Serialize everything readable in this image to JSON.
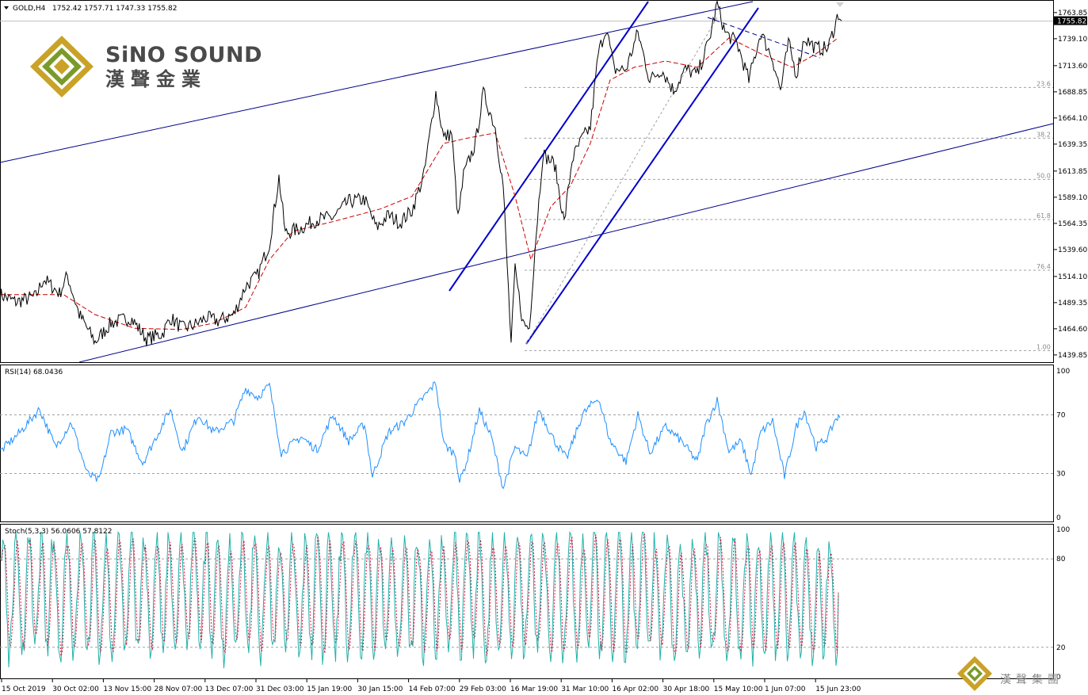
{
  "header": {
    "symbol_label": "GOLD,H4",
    "ohlc": "1752.42 1757.71 1747.33 1755.82"
  },
  "logo": {
    "name_en": "SiNO SOUND",
    "name_cn": "漢聲金業",
    "watermark_cn": "漢聲集團",
    "gold": "#c9a227",
    "green": "#7a9a2a"
  },
  "colors": {
    "candle": "#000000",
    "ma": "#cc0000",
    "channel": "#00008b",
    "rsi": "#1e90ff",
    "stoch_main": "#20b2aa",
    "stoch_signal": "#dc143c",
    "fib": "#a0a0a0"
  },
  "chart_data": [
    {
      "type": "line",
      "id": "price",
      "title": "GOLD,H4",
      "ohlc_last": {
        "open": 1752.42,
        "high": 1757.71,
        "low": 1747.33,
        "close": 1755.82
      },
      "current_price_label": "1755.82",
      "ylim": [
        1433,
        1775
      ],
      "yticks": [
        "1763.85",
        "1739.10",
        "1713.60",
        "1688.85",
        "1664.10",
        "1639.35",
        "1613.85",
        "1589.10",
        "1564.35",
        "1539.60",
        "1514.10",
        "1489.35",
        "1464.60",
        "1439.85"
      ],
      "x_labels": [
        "15 Oct 2019",
        "30 Oct 02:00",
        "13 Nov 15:00",
        "28 Nov 07:00",
        "13 Dec 07:00",
        "31 Dec 03:00",
        "15 Jan 19:00",
        "30 Jan 15:00",
        "14 Feb 07:00",
        "29 Feb 03:00",
        "16 Mar 19:00",
        "31 Mar 10:00",
        "16 Apr 02:00",
        "30 Apr 18:00",
        "15 May 10:00",
        "1 Jun 07:00",
        "15 Jun 23:00"
      ],
      "price_path": [
        [
          0,
          1497
        ],
        [
          20,
          1490
        ],
        [
          45,
          1495
        ],
        [
          55,
          1512
        ],
        [
          75,
          1498
        ],
        [
          85,
          1515
        ],
        [
          100,
          1478
        ],
        [
          120,
          1452
        ],
        [
          140,
          1470
        ],
        [
          165,
          1475
        ],
        [
          185,
          1455
        ],
        [
          205,
          1460
        ],
        [
          215,
          1475
        ],
        [
          230,
          1465
        ],
        [
          245,
          1468
        ],
        [
          260,
          1475
        ],
        [
          275,
          1472
        ],
        [
          295,
          1478
        ],
        [
          310,
          1505
        ],
        [
          325,
          1515
        ],
        [
          340,
          1545
        ],
        [
          352,
          1608
        ],
        [
          360,
          1555
        ],
        [
          380,
          1560
        ],
        [
          400,
          1568
        ],
        [
          420,
          1570
        ],
        [
          440,
          1585
        ],
        [
          460,
          1587
        ],
        [
          475,
          1560
        ],
        [
          490,
          1572
        ],
        [
          505,
          1565
        ],
        [
          520,
          1577
        ],
        [
          535,
          1610
        ],
        [
          550,
          1688
        ],
        [
          560,
          1645
        ],
        [
          570,
          1650
        ],
        [
          578,
          1568
        ],
        [
          585,
          1610
        ],
        [
          600,
          1640
        ],
        [
          610,
          1688
        ],
        [
          625,
          1655
        ],
        [
          635,
          1600
        ],
        [
          645,
          1450
        ],
        [
          650,
          1520
        ],
        [
          660,
          1470
        ],
        [
          668,
          1465
        ],
        [
          675,
          1540
        ],
        [
          685,
          1630
        ],
        [
          700,
          1620
        ],
        [
          712,
          1565
        ],
        [
          722,
          1625
        ],
        [
          735,
          1645
        ],
        [
          745,
          1655
        ],
        [
          755,
          1725
        ],
        [
          765,
          1750
        ],
        [
          775,
          1710
        ],
        [
          790,
          1710
        ],
        [
          805,
          1745
        ],
        [
          820,
          1700
        ],
        [
          835,
          1710
        ],
        [
          850,
          1690
        ],
        [
          865,
          1710
        ],
        [
          880,
          1705
        ],
        [
          895,
          1738
        ],
        [
          905,
          1772
        ],
        [
          915,
          1745
        ],
        [
          930,
          1735
        ],
        [
          945,
          1700
        ],
        [
          960,
          1745
        ],
        [
          975,
          1720
        ],
        [
          985,
          1690
        ],
        [
          995,
          1735
        ],
        [
          1005,
          1705
        ],
        [
          1015,
          1740
        ],
        [
          1030,
          1730
        ],
        [
          1045,
          1730
        ],
        [
          1058,
          1763
        ],
        [
          1062,
          1756
        ]
      ],
      "ma_path": [
        [
          0,
          1497
        ],
        [
          80,
          1497
        ],
        [
          120,
          1478
        ],
        [
          170,
          1465
        ],
        [
          230,
          1464
        ],
        [
          270,
          1470
        ],
        [
          310,
          1485
        ],
        [
          340,
          1530
        ],
        [
          370,
          1557
        ],
        [
          420,
          1566
        ],
        [
          480,
          1578
        ],
        [
          520,
          1590
        ],
        [
          560,
          1640
        ],
        [
          590,
          1645
        ],
        [
          625,
          1650
        ],
        [
          650,
          1590
        ],
        [
          670,
          1530
        ],
        [
          695,
          1580
        ],
        [
          720,
          1600
        ],
        [
          745,
          1640
        ],
        [
          770,
          1700
        ],
        [
          800,
          1712
        ],
        [
          840,
          1718
        ],
        [
          880,
          1712
        ],
        [
          920,
          1740
        ],
        [
          960,
          1725
        ],
        [
          1000,
          1712
        ],
        [
          1030,
          1725
        ],
        [
          1058,
          1740
        ]
      ],
      "fib_levels": [
        {
          "label": "23.6",
          "price": 1693
        },
        {
          "label": "38.2",
          "price": 1645
        },
        {
          "label": "50.0",
          "price": 1606
        },
        {
          "label": "61.8",
          "price": 1568
        },
        {
          "label": "76.4",
          "price": 1520
        },
        {
          "label": "1.00",
          "price": 1444
        }
      ]
    },
    {
      "type": "line",
      "id": "rsi",
      "title": "RSI(14) 68.0436",
      "ylim": [
        0,
        100
      ],
      "yticks": [
        "100",
        "70",
        "30",
        "0"
      ],
      "levels": [
        30,
        70
      ],
      "path": [
        [
          0,
          45
        ],
        [
          25,
          58
        ],
        [
          50,
          74
        ],
        [
          70,
          48
        ],
        [
          90,
          65
        ],
        [
          110,
          30
        ],
        [
          125,
          25
        ],
        [
          140,
          58
        ],
        [
          160,
          60
        ],
        [
          180,
          37
        ],
        [
          200,
          58
        ],
        [
          215,
          74
        ],
        [
          230,
          45
        ],
        [
          250,
          70
        ],
        [
          270,
          58
        ],
        [
          295,
          66
        ],
        [
          310,
          88
        ],
        [
          325,
          82
        ],
        [
          340,
          90
        ],
        [
          355,
          44
        ],
        [
          380,
          55
        ],
        [
          400,
          46
        ],
        [
          420,
          70
        ],
        [
          440,
          52
        ],
        [
          460,
          64
        ],
        [
          470,
          28
        ],
        [
          490,
          58
        ],
        [
          510,
          65
        ],
        [
          530,
          79
        ],
        [
          550,
          92
        ],
        [
          560,
          50
        ],
        [
          575,
          43
        ],
        [
          580,
          24
        ],
        [
          590,
          40
        ],
        [
          605,
          73
        ],
        [
          620,
          55
        ],
        [
          635,
          20
        ],
        [
          650,
          48
        ],
        [
          665,
          40
        ],
        [
          680,
          74
        ],
        [
          700,
          52
        ],
        [
          715,
          40
        ],
        [
          735,
          70
        ],
        [
          755,
          82
        ],
        [
          770,
          52
        ],
        [
          790,
          38
        ],
        [
          805,
          70
        ],
        [
          820,
          44
        ],
        [
          840,
          62
        ],
        [
          860,
          52
        ],
        [
          880,
          38
        ],
        [
          890,
          62
        ],
        [
          905,
          80
        ],
        [
          920,
          45
        ],
        [
          935,
          52
        ],
        [
          948,
          29
        ],
        [
          960,
          58
        ],
        [
          975,
          66
        ],
        [
          990,
          28
        ],
        [
          1005,
          62
        ],
        [
          1015,
          73
        ],
        [
          1030,
          48
        ],
        [
          1045,
          55
        ],
        [
          1055,
          68
        ],
        [
          1060,
          68
        ]
      ]
    },
    {
      "type": "line",
      "id": "stochastic",
      "title": "Stoch(5,3,3) 56.0606 57.8122",
      "ylim": [
        0,
        100
      ],
      "yticks": [
        "100",
        "80",
        "20",
        "0"
      ],
      "levels": [
        20,
        80
      ],
      "last": {
        "main": 56.0606,
        "signal": 57.8122
      }
    }
  ]
}
